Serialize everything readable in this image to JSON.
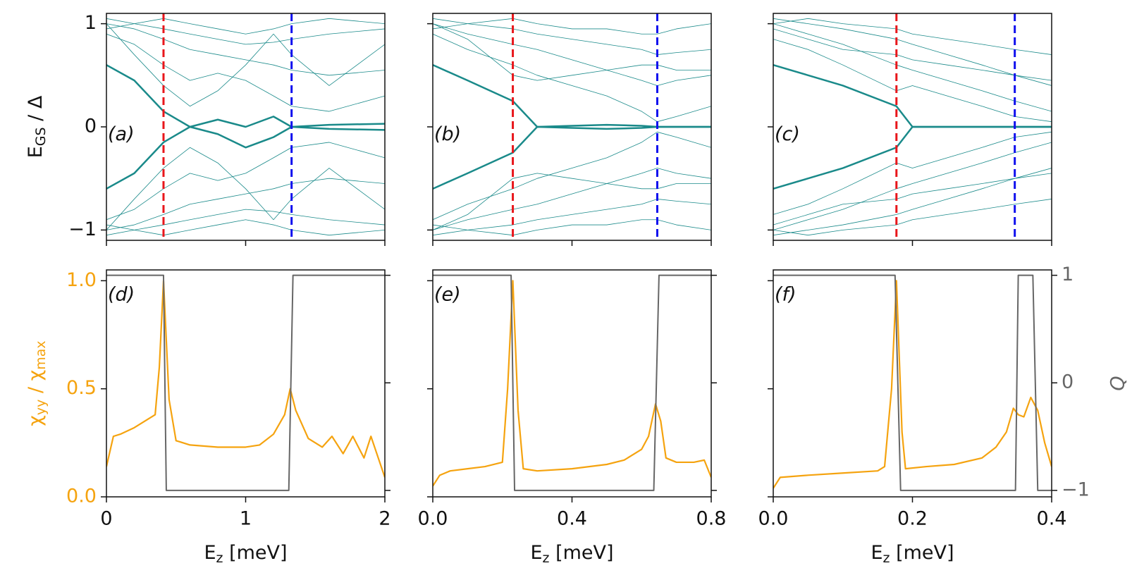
{
  "chart_data": [
    {
      "type": "spectrum",
      "panel_label": "(a)",
      "ylabel": [
        "E",
        "GS",
        " / Δ"
      ],
      "color": "#1a8a8a",
      "x": [
        0,
        0.2,
        0.41,
        0.6,
        0.8,
        1.0,
        1.2,
        1.33,
        1.6,
        2.0
      ],
      "series": [
        {
          "width": 2.5,
          "values": [
            0.6,
            0.45,
            0.15,
            0.0,
            0.07,
            0.0,
            0.1,
            0.0,
            0.02,
            0.03
          ]
        },
        {
          "width": 2.5,
          "values": [
            -0.6,
            -0.45,
            -0.15,
            0.0,
            -0.07,
            -0.2,
            -0.1,
            0.0,
            -0.02,
            -0.03
          ]
        },
        {
          "width": 0.8,
          "values": [
            0.9,
            0.8,
            0.6,
            0.45,
            0.52,
            0.45,
            0.3,
            0.2,
            0.15,
            0.3
          ]
        },
        {
          "width": 0.8,
          "values": [
            -0.9,
            -0.8,
            -0.6,
            -0.45,
            -0.52,
            -0.45,
            -0.3,
            -0.2,
            -0.15,
            -0.3
          ]
        },
        {
          "width": 0.8,
          "values": [
            1.0,
            0.95,
            0.85,
            0.75,
            0.7,
            0.65,
            0.6,
            0.55,
            0.5,
            0.55
          ]
        },
        {
          "width": 0.8,
          "values": [
            -1.0,
            -0.95,
            -0.85,
            -0.75,
            -0.7,
            -0.65,
            -0.6,
            -0.55,
            -0.5,
            -0.55
          ]
        },
        {
          "width": 0.8,
          "values": [
            1.05,
            1.0,
            0.95,
            0.9,
            0.85,
            0.8,
            0.82,
            0.85,
            0.9,
            0.95
          ]
        },
        {
          "width": 0.8,
          "values": [
            -1.05,
            -1.0,
            -0.95,
            -0.9,
            -0.85,
            -0.8,
            -0.82,
            -0.85,
            -0.9,
            -0.95
          ]
        },
        {
          "width": 0.8,
          "values": [
            0.95,
            1.0,
            1.05,
            1.0,
            0.95,
            0.9,
            0.95,
            1.0,
            1.05,
            1.0
          ]
        },
        {
          "width": 0.8,
          "values": [
            -0.95,
            -1.0,
            -1.05,
            -1.0,
            -0.95,
            -0.9,
            -0.95,
            -1.0,
            -1.05,
            -1.0
          ]
        },
        {
          "width": 0.8,
          "values": [
            1.0,
            0.7,
            0.4,
            0.2,
            0.35,
            0.6,
            0.9,
            0.7,
            0.4,
            0.8
          ]
        },
        {
          "width": 0.8,
          "values": [
            -1.0,
            -0.7,
            -0.4,
            -0.2,
            -0.35,
            -0.6,
            -0.9,
            -0.7,
            -0.4,
            -0.8
          ]
        }
      ],
      "vlines": [
        {
          "x": 0.41,
          "color": "#e8161b"
        },
        {
          "x": 1.33,
          "color": "#1010ee"
        }
      ],
      "xlim": [
        0,
        2
      ],
      "xticks": [
        0,
        1,
        2
      ],
      "xtick_labels": false,
      "ylim": [
        -1.1,
        1.1
      ],
      "yticks": [
        {
          "value": -1,
          "label": "−1"
        },
        0,
        1
      ],
      "ytick_labels": true
    },
    {
      "type": "spectrum",
      "panel_label": "(b)",
      "color": "#1a8a8a",
      "x": [
        0,
        0.1,
        0.23,
        0.3,
        0.4,
        0.5,
        0.6,
        0.645,
        0.7,
        0.8
      ],
      "series": [
        {
          "width": 2.5,
          "values": [
            0.6,
            0.45,
            0.25,
            0.0,
            0.01,
            0.02,
            0.01,
            0.0,
            0.0,
            0.0
          ]
        },
        {
          "width": 2.5,
          "values": [
            -0.6,
            -0.45,
            -0.25,
            0.0,
            -0.01,
            -0.02,
            -0.01,
            0.0,
            0.0,
            0.0
          ]
        },
        {
          "width": 0.8,
          "values": [
            0.9,
            0.75,
            0.6,
            0.5,
            0.4,
            0.3,
            0.15,
            0.05,
            0.1,
            0.2
          ]
        },
        {
          "width": 0.8,
          "values": [
            -0.9,
            -0.75,
            -0.6,
            -0.5,
            -0.4,
            -0.3,
            -0.15,
            -0.05,
            -0.1,
            -0.2
          ]
        },
        {
          "width": 0.8,
          "values": [
            1.0,
            0.9,
            0.8,
            0.75,
            0.65,
            0.55,
            0.45,
            0.4,
            0.45,
            0.5
          ]
        },
        {
          "width": 0.8,
          "values": [
            -1.0,
            -0.9,
            -0.8,
            -0.75,
            -0.65,
            -0.55,
            -0.45,
            -0.4,
            -0.45,
            -0.5
          ]
        },
        {
          "width": 0.8,
          "values": [
            1.05,
            1.0,
            0.95,
            0.9,
            0.85,
            0.8,
            0.75,
            0.7,
            0.72,
            0.75
          ]
        },
        {
          "width": 0.8,
          "values": [
            -1.05,
            -1.0,
            -0.95,
            -0.9,
            -0.85,
            -0.8,
            -0.75,
            -0.7,
            -0.72,
            -0.75
          ]
        },
        {
          "width": 0.8,
          "values": [
            0.95,
            1.0,
            1.05,
            1.0,
            0.95,
            0.95,
            0.9,
            0.9,
            0.95,
            1.0
          ]
        },
        {
          "width": 0.8,
          "values": [
            -0.95,
            -1.0,
            -1.05,
            -1.0,
            -0.95,
            -0.95,
            -0.9,
            -0.9,
            -0.95,
            -1.0
          ]
        },
        {
          "width": 0.8,
          "values": [
            1.0,
            0.85,
            0.5,
            0.45,
            0.5,
            0.55,
            0.6,
            0.6,
            0.55,
            0.55
          ]
        },
        {
          "width": 0.8,
          "values": [
            -1.0,
            -0.85,
            -0.5,
            -0.45,
            -0.5,
            -0.55,
            -0.6,
            -0.6,
            -0.55,
            -0.55
          ]
        }
      ],
      "vlines": [
        {
          "x": 0.23,
          "color": "#e8161b"
        },
        {
          "x": 0.645,
          "color": "#1010ee"
        }
      ],
      "xlim": [
        0,
        0.8
      ],
      "xticks": [
        0,
        0.4,
        0.8
      ],
      "xtick_labels": false,
      "ylim": [
        -1.1,
        1.1
      ],
      "yticks": [
        -1,
        0,
        1
      ],
      "ytick_labels": false
    },
    {
      "type": "spectrum",
      "panel_label": "(c)",
      "color": "#1a8a8a",
      "x": [
        0,
        0.05,
        0.1,
        0.177,
        0.2,
        0.25,
        0.3,
        0.347,
        0.4
      ],
      "series": [
        {
          "width": 2.5,
          "values": [
            0.6,
            0.5,
            0.4,
            0.2,
            0.0,
            0.0,
            0.0,
            0.0,
            0.0
          ]
        },
        {
          "width": 2.5,
          "values": [
            -0.6,
            -0.5,
            -0.4,
            -0.2,
            0.0,
            0.0,
            0.0,
            0.0,
            0.0
          ]
        },
        {
          "width": 0.8,
          "values": [
            0.85,
            0.75,
            0.6,
            0.35,
            0.4,
            0.3,
            0.2,
            0.1,
            0.05
          ]
        },
        {
          "width": 0.8,
          "values": [
            -0.85,
            -0.75,
            -0.6,
            -0.35,
            -0.4,
            -0.3,
            -0.2,
            -0.1,
            -0.05
          ]
        },
        {
          "width": 0.8,
          "values": [
            1.0,
            0.9,
            0.8,
            0.6,
            0.55,
            0.45,
            0.35,
            0.25,
            0.15
          ]
        },
        {
          "width": 0.8,
          "values": [
            -1.0,
            -0.9,
            -0.8,
            -0.6,
            -0.55,
            -0.45,
            -0.35,
            -0.25,
            -0.15
          ]
        },
        {
          "width": 0.8,
          "values": [
            1.05,
            1.0,
            0.95,
            0.85,
            0.8,
            0.7,
            0.6,
            0.5,
            0.4
          ]
        },
        {
          "width": 0.8,
          "values": [
            -1.05,
            -1.0,
            -0.95,
            -0.85,
            -0.8,
            -0.7,
            -0.6,
            -0.5,
            -0.4
          ]
        },
        {
          "width": 0.8,
          "values": [
            1.0,
            1.05,
            1.0,
            0.95,
            0.9,
            0.85,
            0.8,
            0.75,
            0.7
          ]
        },
        {
          "width": 0.8,
          "values": [
            -1.0,
            -1.05,
            -1.0,
            -0.95,
            -0.9,
            -0.85,
            -0.8,
            -0.75,
            -0.7
          ]
        },
        {
          "width": 0.8,
          "values": [
            0.95,
            0.85,
            0.75,
            0.7,
            0.65,
            0.6,
            0.55,
            0.5,
            0.45
          ]
        },
        {
          "width": 0.8,
          "values": [
            -0.95,
            -0.85,
            -0.75,
            -0.7,
            -0.65,
            -0.6,
            -0.55,
            -0.5,
            -0.45
          ]
        }
      ],
      "vlines": [
        {
          "x": 0.177,
          "color": "#e8161b"
        },
        {
          "x": 0.347,
          "color": "#1010ee"
        }
      ],
      "xlim": [
        0,
        0.4
      ],
      "xticks": [
        0,
        0.2,
        0.4
      ],
      "xtick_labels": false,
      "ylim": [
        -1.1,
        1.1
      ],
      "yticks": [
        -1,
        0,
        1
      ],
      "ytick_labels": false
    },
    {
      "type": "response",
      "panel_label": "(d)",
      "ylabel": [
        "χ",
        "yy",
        " / χ",
        "max"
      ],
      "xlabel": [
        "E",
        "z",
        " [meV]"
      ],
      "series": [
        {
          "color": "#f5a30f",
          "x": [
            0,
            0.05,
            0.1,
            0.2,
            0.3,
            0.35,
            0.38,
            0.41,
            0.45,
            0.5,
            0.6,
            0.8,
            1.0,
            1.1,
            1.2,
            1.28,
            1.32,
            1.36,
            1.45,
            1.55,
            1.62,
            1.7,
            1.77,
            1.85,
            1.9,
            2.0
          ],
          "values": [
            0.14,
            0.28,
            0.29,
            0.32,
            0.36,
            0.38,
            0.6,
            1.0,
            0.45,
            0.26,
            0.24,
            0.23,
            0.23,
            0.24,
            0.29,
            0.38,
            0.5,
            0.4,
            0.27,
            0.23,
            0.28,
            0.2,
            0.28,
            0.18,
            0.28,
            0.09
          ]
        },
        {
          "color": "#666666",
          "axis": "y2",
          "x": [
            0,
            0.41,
            0.43,
            1.31,
            1.34,
            2.0
          ],
          "values": [
            1,
            1,
            -1,
            -1,
            1,
            1
          ]
        }
      ],
      "xlim": [
        0,
        2
      ],
      "xticks": [
        0,
        1,
        2
      ],
      "ylim": [
        0,
        1.05
      ],
      "yticks": [
        {
          "value": 0,
          "label": "0.0"
        },
        0.5,
        {
          "value": 1,
          "label": "1.0"
        }
      ],
      "ytick_labels": true,
      "y2lim": [
        -1.06,
        1.05
      ],
      "y2ticks": [
        -1,
        0,
        1
      ],
      "y2tick_labels": false
    },
    {
      "type": "response",
      "panel_label": "(e)",
      "xlabel": [
        "E",
        "z",
        " [meV]"
      ],
      "series": [
        {
          "color": "#f5a30f",
          "x": [
            0,
            0.02,
            0.05,
            0.1,
            0.15,
            0.2,
            0.215,
            0.23,
            0.245,
            0.26,
            0.3,
            0.4,
            0.5,
            0.55,
            0.6,
            0.62,
            0.64,
            0.655,
            0.67,
            0.7,
            0.75,
            0.78,
            0.8
          ],
          "values": [
            0.05,
            0.1,
            0.12,
            0.13,
            0.14,
            0.16,
            0.5,
            1.0,
            0.4,
            0.13,
            0.12,
            0.13,
            0.15,
            0.17,
            0.22,
            0.28,
            0.43,
            0.35,
            0.18,
            0.16,
            0.16,
            0.17,
            0.09
          ]
        },
        {
          "color": "#666666",
          "axis": "y2",
          "x": [
            0,
            0.225,
            0.235,
            0.635,
            0.65,
            0.8
          ],
          "values": [
            1,
            1,
            -1,
            -1,
            1,
            1
          ]
        }
      ],
      "xlim": [
        0,
        0.8
      ],
      "xticks": [
        {
          "value": 0,
          "label": "0.0"
        },
        0.4,
        0.8
      ],
      "ylim": [
        0,
        1.05
      ],
      "yticks": [
        0,
        0.5,
        1
      ],
      "ytick_labels": false,
      "y2lim": [
        -1.06,
        1.05
      ],
      "y2ticks": [
        -1,
        0,
        1
      ],
      "y2tick_labels": false
    },
    {
      "type": "response",
      "panel_label": "(f)",
      "xlabel": [
        "E",
        "z",
        " [meV]"
      ],
      "y2label": "Q",
      "series": [
        {
          "color": "#f5a30f",
          "x": [
            0,
            0.01,
            0.05,
            0.1,
            0.15,
            0.16,
            0.17,
            0.177,
            0.185,
            0.19,
            0.22,
            0.26,
            0.3,
            0.32,
            0.335,
            0.345,
            0.352,
            0.36,
            0.37,
            0.38,
            0.39,
            0.4
          ],
          "values": [
            0.04,
            0.09,
            0.1,
            0.11,
            0.12,
            0.14,
            0.5,
            1.0,
            0.3,
            0.13,
            0.14,
            0.15,
            0.18,
            0.23,
            0.3,
            0.41,
            0.38,
            0.37,
            0.46,
            0.4,
            0.25,
            0.14
          ]
        },
        {
          "color": "#666666",
          "axis": "y2",
          "x": [
            0,
            0.175,
            0.183,
            0.348,
            0.352,
            0.373,
            0.38,
            0.4
          ],
          "values": [
            1,
            1,
            -1,
            -1,
            1,
            1,
            -1,
            -1
          ]
        }
      ],
      "xlim": [
        0,
        0.4
      ],
      "xticks": [
        {
          "value": 0,
          "label": "0.0"
        },
        0.2,
        0.4
      ],
      "ylim": [
        0,
        1.05
      ],
      "yticks": [
        0,
        0.5,
        1
      ],
      "ytick_labels": false,
      "y2lim": [
        -1.06,
        1.05
      ],
      "y2ticks": [
        {
          "value": -1,
          "label": "−1"
        },
        0,
        1
      ],
      "y2tick_labels": true
    }
  ]
}
